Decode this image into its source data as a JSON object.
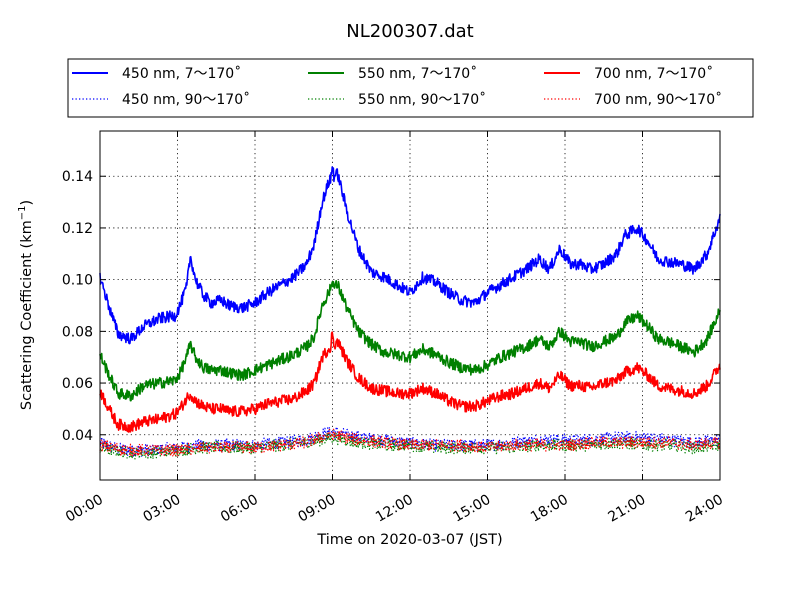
{
  "chart_data": {
    "type": "line",
    "title": "NL200307.dat",
    "xlabel": "Time on 2020-03-07 (JST)",
    "ylabel_main": "Scattering Coefficient (km",
    "ylabel_sup": "−1",
    "ylabel_close": ")",
    "xlim": [
      0,
      24
    ],
    "ylim": [
      0.0225,
      0.1575
    ],
    "x_ticks": [
      0,
      3,
      6,
      9,
      12,
      15,
      18,
      21,
      24
    ],
    "x_tick_labels": [
      "00:00",
      "03:00",
      "06:00",
      "09:00",
      "12:00",
      "15:00",
      "18:00",
      "21:00",
      "24:00"
    ],
    "y_ticks": [
      0.04,
      0.06,
      0.08,
      0.1,
      0.12,
      0.14
    ],
    "y_tick_labels": [
      "0.04",
      "0.06",
      "0.08",
      "0.10",
      "0.12",
      "0.14"
    ],
    "grid": true,
    "legend_position": "top",
    "x_unit": "hours after 00:00 JST",
    "series": [
      {
        "name": "450 nm, 7～170˚",
        "color": "#0000ff",
        "style": "solid",
        "x": [
          0,
          0.4,
          0.7,
          1.2,
          1.7,
          2.3,
          2.9,
          3.1,
          3.35,
          3.5,
          3.7,
          4.0,
          4.3,
          4.7,
          5.0,
          5.5,
          6.0,
          6.5,
          7.0,
          7.5,
          8.0,
          8.3,
          8.6,
          8.9,
          9.2,
          9.6,
          10.0,
          10.5,
          11.0,
          11.5,
          12.0,
          12.5,
          13.0,
          13.5,
          14.0,
          14.5,
          15.0,
          15.5,
          16.0,
          16.5,
          17.0,
          17.4,
          17.8,
          18.2,
          18.6,
          19.0,
          19.5,
          20.0,
          20.3,
          20.8,
          21.2,
          21.6,
          22.0,
          22.5,
          23.0,
          23.5,
          24.0
        ],
        "y": [
          0.101,
          0.088,
          0.079,
          0.077,
          0.082,
          0.085,
          0.086,
          0.09,
          0.097,
          0.109,
          0.1,
          0.094,
          0.091,
          0.092,
          0.09,
          0.089,
          0.091,
          0.095,
          0.098,
          0.101,
          0.106,
          0.114,
          0.13,
          0.139,
          0.141,
          0.125,
          0.112,
          0.103,
          0.101,
          0.098,
          0.095,
          0.101,
          0.099,
          0.095,
          0.092,
          0.091,
          0.095,
          0.098,
          0.101,
          0.104,
          0.108,
          0.104,
          0.112,
          0.106,
          0.106,
          0.104,
          0.106,
          0.11,
          0.117,
          0.12,
          0.115,
          0.108,
          0.107,
          0.106,
          0.104,
          0.11,
          0.124
        ]
      },
      {
        "name": "450 nm, 90～170˚",
        "color": "#0000ff",
        "style": "dotted",
        "x": [
          0,
          0.5,
          1.0,
          2.0,
          3.0,
          4.0,
          5.0,
          6.0,
          7.0,
          8.0,
          8.5,
          9.0,
          9.5,
          10.0,
          11.0,
          12.0,
          13.0,
          14.0,
          15.0,
          16.0,
          17.0,
          18.0,
          19.0,
          20.0,
          21.0,
          22.0,
          23.0,
          24.0
        ],
        "y": [
          0.037,
          0.035,
          0.034,
          0.034,
          0.035,
          0.036,
          0.036,
          0.036,
          0.037,
          0.038,
          0.04,
          0.041,
          0.04,
          0.039,
          0.038,
          0.037,
          0.036,
          0.036,
          0.036,
          0.037,
          0.038,
          0.038,
          0.038,
          0.039,
          0.039,
          0.038,
          0.037,
          0.038
        ]
      },
      {
        "name": "550 nm, 7～170˚",
        "color": "#008000",
        "style": "solid",
        "x": [
          0,
          0.4,
          0.7,
          1.2,
          1.7,
          2.3,
          2.9,
          3.1,
          3.35,
          3.5,
          3.7,
          4.0,
          4.3,
          4.7,
          5.0,
          5.5,
          6.0,
          6.5,
          7.0,
          7.5,
          8.0,
          8.3,
          8.6,
          8.9,
          9.2,
          9.6,
          10.0,
          10.5,
          11.0,
          11.5,
          12.0,
          12.5,
          13.0,
          13.5,
          14.0,
          14.5,
          15.0,
          15.5,
          16.0,
          16.5,
          17.0,
          17.4,
          17.8,
          18.2,
          18.6,
          19.0,
          19.5,
          20.0,
          20.3,
          20.8,
          21.2,
          21.6,
          22.0,
          22.5,
          23.0,
          23.5,
          24.0
        ],
        "y": [
          0.071,
          0.062,
          0.056,
          0.055,
          0.059,
          0.06,
          0.061,
          0.064,
          0.07,
          0.075,
          0.07,
          0.066,
          0.065,
          0.065,
          0.064,
          0.063,
          0.065,
          0.067,
          0.069,
          0.071,
          0.074,
          0.078,
          0.09,
          0.096,
          0.098,
          0.088,
          0.08,
          0.075,
          0.072,
          0.071,
          0.07,
          0.073,
          0.071,
          0.068,
          0.066,
          0.065,
          0.067,
          0.07,
          0.072,
          0.074,
          0.077,
          0.074,
          0.08,
          0.076,
          0.076,
          0.074,
          0.076,
          0.078,
          0.083,
          0.086,
          0.082,
          0.077,
          0.076,
          0.074,
          0.072,
          0.077,
          0.088
        ]
      },
      {
        "name": "550 nm, 90～170˚",
        "color": "#008000",
        "style": "dotted",
        "x": [
          0,
          0.5,
          1.0,
          2.0,
          3.0,
          4.0,
          5.0,
          6.0,
          7.0,
          8.0,
          8.5,
          9.0,
          9.5,
          10.0,
          11.0,
          12.0,
          13.0,
          14.0,
          15.0,
          16.0,
          17.0,
          18.0,
          19.0,
          20.0,
          21.0,
          22.0,
          23.0,
          24.0
        ],
        "y": [
          0.035,
          0.034,
          0.033,
          0.033,
          0.034,
          0.035,
          0.035,
          0.035,
          0.036,
          0.037,
          0.038,
          0.039,
          0.038,
          0.037,
          0.036,
          0.036,
          0.035,
          0.035,
          0.035,
          0.035,
          0.036,
          0.036,
          0.036,
          0.037,
          0.036,
          0.036,
          0.035,
          0.036
        ]
      },
      {
        "name": "700 nm, 7～170˚",
        "color": "#ff0000",
        "style": "solid",
        "x": [
          0,
          0.4,
          0.7,
          1.2,
          1.7,
          2.3,
          2.9,
          3.1,
          3.35,
          3.5,
          3.7,
          4.0,
          4.3,
          4.7,
          5.0,
          5.5,
          6.0,
          6.5,
          7.0,
          7.5,
          8.0,
          8.3,
          8.6,
          8.9,
          9.2,
          9.6,
          10.0,
          10.5,
          11.0,
          11.5,
          12.0,
          12.5,
          13.0,
          13.5,
          14.0,
          14.5,
          15.0,
          15.5,
          16.0,
          16.5,
          17.0,
          17.4,
          17.8,
          18.2,
          18.6,
          19.0,
          19.5,
          20.0,
          20.3,
          20.8,
          21.2,
          21.6,
          22.0,
          22.5,
          23.0,
          23.5,
          24.0
        ],
        "y": [
          0.057,
          0.049,
          0.044,
          0.043,
          0.045,
          0.046,
          0.048,
          0.05,
          0.054,
          0.056,
          0.053,
          0.051,
          0.05,
          0.05,
          0.049,
          0.049,
          0.05,
          0.052,
          0.053,
          0.054,
          0.057,
          0.06,
          0.07,
          0.074,
          0.076,
          0.068,
          0.062,
          0.058,
          0.057,
          0.056,
          0.056,
          0.058,
          0.056,
          0.053,
          0.051,
          0.051,
          0.053,
          0.055,
          0.056,
          0.058,
          0.06,
          0.058,
          0.063,
          0.059,
          0.059,
          0.058,
          0.06,
          0.061,
          0.064,
          0.066,
          0.063,
          0.059,
          0.058,
          0.057,
          0.056,
          0.059,
          0.067
        ]
      },
      {
        "name": "700 nm, 90～170˚",
        "color": "#ff0000",
        "style": "dotted",
        "x": [
          0,
          0.5,
          1.0,
          2.0,
          3.0,
          4.0,
          5.0,
          6.0,
          7.0,
          8.0,
          8.5,
          9.0,
          9.5,
          10.0,
          11.0,
          12.0,
          13.0,
          14.0,
          15.0,
          16.0,
          17.0,
          18.0,
          19.0,
          20.0,
          21.0,
          22.0,
          23.0,
          24.0
        ],
        "y": [
          0.036,
          0.035,
          0.034,
          0.034,
          0.034,
          0.035,
          0.035,
          0.035,
          0.036,
          0.037,
          0.039,
          0.04,
          0.039,
          0.038,
          0.037,
          0.036,
          0.036,
          0.036,
          0.035,
          0.036,
          0.036,
          0.036,
          0.037,
          0.037,
          0.037,
          0.037,
          0.036,
          0.037
        ]
      }
    ]
  }
}
